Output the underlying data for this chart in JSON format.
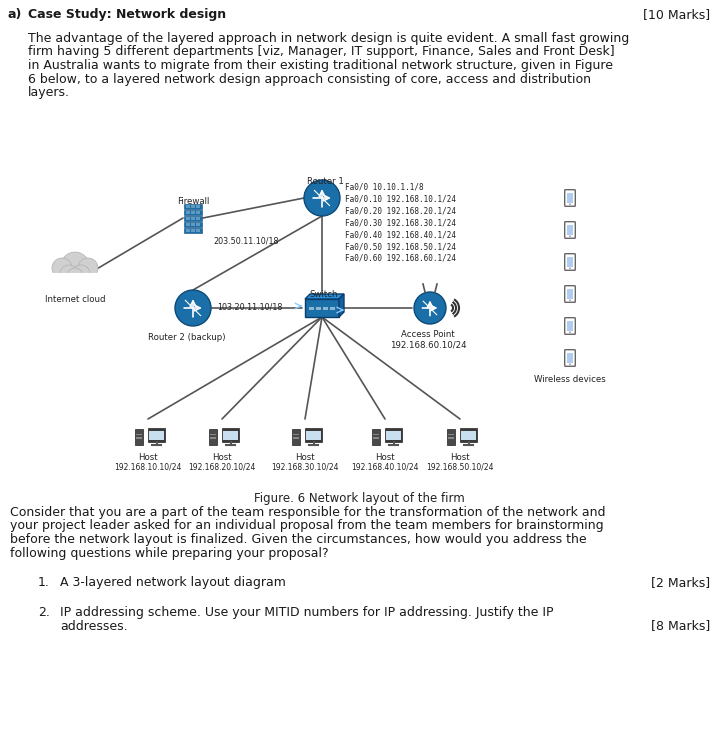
{
  "title_a": "a)   Case Study: Network design",
  "marks_a": "[10 Marks]",
  "para1_lines": [
    "The advantage of the layered approach in network design is quite evident. A small fast growing",
    "firm having 5 different departments [viz, Manager, IT support, Finance, Sales and Front Desk]",
    "in Australia wants to migrate from their existing traditional network structure, given in Figure",
    "6 below, to a layered network design approach consisting of core, access and distribution",
    "layers."
  ],
  "fig_caption": "Figure. 6 Network layout of the firm",
  "para2_lines": [
    "Consider that you are a part of the team responsible for the transformation of the network and",
    "your project leader asked for an individual proposal from the team members for brainstorming",
    "before the network layout is finalized. Given the circumstances, how would you address the",
    "following questions while preparing your proposal?"
  ],
  "q1_num": "1.",
  "q1_text": "A 3-layered network layout diagram",
  "q1_marks": "[2 Marks]",
  "q2_num": "2.",
  "q2_line1": "IP addressing scheme. Use your MITID numbers for IP addressing. Justify the IP",
  "q2_line2": "addresses.",
  "q2_marks": "[8 Marks]",
  "bg_color": "#ffffff",
  "text_color": "#1a1a1a",
  "network_color": "#1a6fa8",
  "line_color": "#555555",
  "firewall_label": "Firewall",
  "router1_label": "Router 1",
  "router1_ip_label": "203.50.11.10/18",
  "router1_ips": "Fa0/0 10.10.1.1/8\nFa0/0.10 192.168.10.1/24\nFa0/0.20 192.168.20.1/24\nFa0/0.30 192.168.30.1/24\nFa0/0.40 192.168.40.1/24\nFa0/0.50 192.168.50.1/24\nFa0/0.60 192.168.60.1/24",
  "router2_label": "Router 2 (backup)",
  "router2_ip_label": "103.20.11.10/18",
  "switch_label": "Switch",
  "ap_label": "Access Point\n192.168.60.10/24",
  "wireless_label": "Wireless devices",
  "cloud_label": "Internet cloud",
  "hosts": [
    {
      "label": "Host",
      "ip": "192.168.10.10/24"
    },
    {
      "label": "Host",
      "ip": "192.168.20.10/24"
    },
    {
      "label": "Host",
      "ip": "192.168.30.10/24"
    },
    {
      "label": "Host",
      "ip": "192.168.40.10/24"
    },
    {
      "label": "Host",
      "ip": "192.168.50.10/24"
    }
  ]
}
